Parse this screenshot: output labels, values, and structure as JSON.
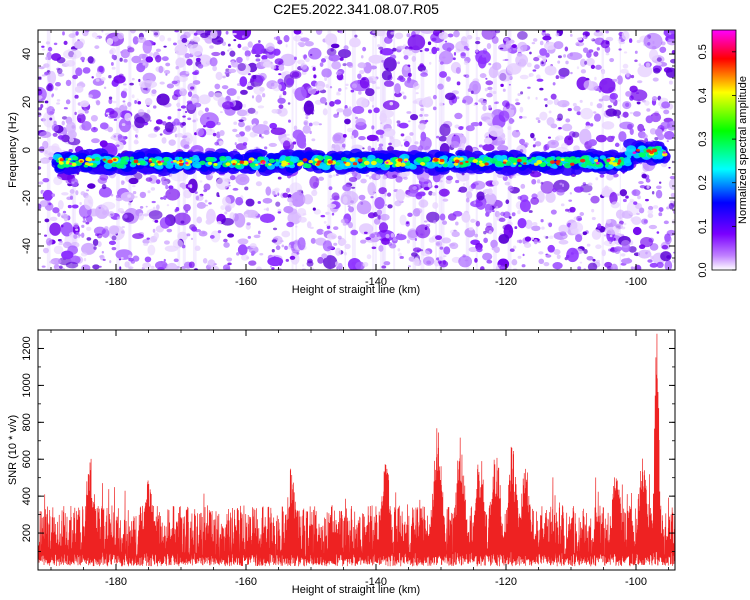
{
  "title": "C2E5.2022.341.08.07.R05",
  "chart_data": [
    {
      "type": "heatmap",
      "xlabel": "Height of straight line (km)",
      "ylabel": "Frequency (Hz)",
      "xlim": [
        -192,
        -94
      ],
      "ylim": [
        -50,
        50
      ],
      "xticks": [
        -180,
        -160,
        -140,
        -120,
        -100
      ],
      "yticks": [
        -40,
        -20,
        0,
        20,
        40
      ],
      "colorbar": {
        "label": "Normalized spectral amplitude",
        "range": [
          0,
          0.55
        ],
        "ticks": [
          0.0,
          0.1,
          0.2,
          0.3,
          0.4,
          0.5
        ],
        "colors": [
          "#ffffff",
          "#7a00ff",
          "#0000ff",
          "#00ffff",
          "#00ff00",
          "#ffff00",
          "#ff0000",
          "#ff00ff"
        ]
      },
      "band_center_hz": -5
    },
    {
      "type": "line",
      "xlabel": "Height of straight line (km)",
      "ylabel": "SNR (10 * v/v)",
      "xlim": [
        -192,
        -94
      ],
      "ylim": [
        0,
        1300
      ],
      "xticks": [
        -180,
        -160,
        -140,
        -120,
        -100
      ],
      "yticks": [
        200,
        400,
        600,
        800,
        1000,
        1200
      ],
      "line_color": "#ee2222",
      "baseline_snr": [
        150,
        350
      ],
      "peaks": [
        {
          "x": -184.0,
          "y": 620
        },
        {
          "x": -175.0,
          "y": 510
        },
        {
          "x": -153.0,
          "y": 560
        },
        {
          "x": -138.5,
          "y": 620
        },
        {
          "x": -130.5,
          "y": 790
        },
        {
          "x": -127.0,
          "y": 720
        },
        {
          "x": -124.0,
          "y": 640
        },
        {
          "x": -121.5,
          "y": 680
        },
        {
          "x": -119.0,
          "y": 700
        },
        {
          "x": -117.0,
          "y": 600
        },
        {
          "x": -103.0,
          "y": 580
        },
        {
          "x": -99.0,
          "y": 620
        },
        {
          "x": -96.8,
          "y": 1300
        }
      ]
    }
  ]
}
